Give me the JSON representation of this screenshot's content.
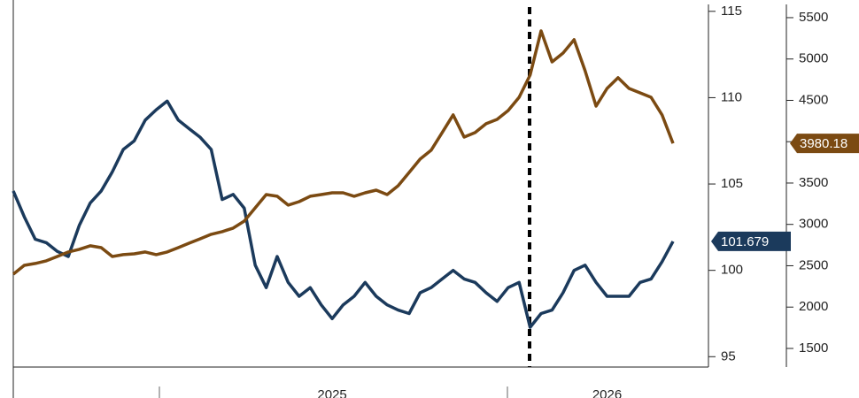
{
  "chart_data": {
    "type": "line",
    "categories": [
      null,
      null,
      null,
      null,
      null,
      null,
      null,
      null,
      null,
      null,
      null,
      null,
      null,
      null,
      null,
      null,
      null,
      null,
      null,
      null,
      null,
      null,
      null,
      null,
      null,
      null,
      null,
      null,
      null,
      "2025",
      null,
      null,
      null,
      null,
      null,
      null,
      null,
      null,
      null,
      null,
      null,
      null,
      null,
      null,
      null,
      null,
      null,
      null,
      null,
      null,
      null,
      null,
      null,
      null,
      "2026",
      null,
      null,
      null,
      null,
      null,
      null
    ],
    "series": [
      {
        "color": "#1b3a5c",
        "values": [
          104.6,
          103.1,
          101.8,
          101.6,
          101.1,
          100.8,
          102.6,
          103.9,
          104.6,
          105.7,
          107.0,
          107.5,
          108.7,
          109.3,
          109.8,
          108.7,
          108.2,
          107.7,
          107.0,
          104.1,
          104.4,
          103.6,
          100.3,
          99.0,
          100.8,
          99.3,
          98.5,
          99.0,
          98.0,
          97.2,
          98.0,
          98.5,
          99.3,
          98.5,
          98.0,
          97.7,
          97.5,
          98.7,
          99.0,
          99.5,
          100.0,
          99.5,
          99.3,
          98.7,
          98.2,
          99.0,
          99.3,
          96.7,
          97.5,
          97.7,
          98.7,
          100.0,
          100.3,
          99.3,
          98.5,
          98.5,
          98.5,
          99.3,
          99.5,
          100.5,
          101.679
        ]
      },
      {
        "color": "#7b4a12",
        "axis": "y2",
        "values": [
          2398,
          2505,
          2527,
          2559,
          2612,
          2666,
          2698,
          2741,
          2719,
          2612,
          2634,
          2644,
          2666,
          2634,
          2666,
          2719,
          2773,
          2826,
          2880,
          2912,
          2955,
          3040,
          3200,
          3361,
          3340,
          3233,
          3275,
          3340,
          3361,
          3382,
          3382,
          3340,
          3382,
          3414,
          3361,
          3468,
          3628,
          3789,
          3896,
          4110,
          4324,
          4056,
          4110,
          4217,
          4270,
          4377,
          4537,
          4805,
          5340,
          4965,
          5072,
          5233,
          4858,
          4430,
          4644,
          4773,
          4644,
          4590,
          4537,
          4324,
          3980.18
        ]
      }
    ],
    "ylim": [
      94.4,
      115.4
    ],
    "yticks": [
      95,
      100,
      105,
      110,
      115
    ],
    "y2lim": [
      1275,
      5660
    ],
    "y2ticks": [
      1500,
      2000,
      2500,
      3000,
      3500,
      4000,
      4500,
      5000,
      5500
    ],
    "grid": false
  }
}
